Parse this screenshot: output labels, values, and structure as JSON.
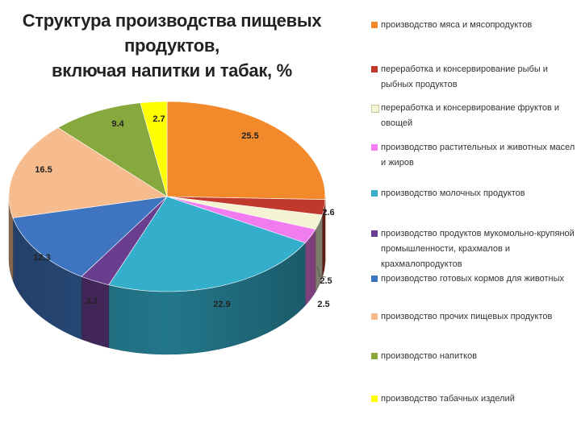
{
  "chart_data": {
    "type": "pie",
    "title_lines": [
      "Структура производства пищевых продуктов,",
      "включая напитки и табак, %"
    ],
    "slices": [
      {
        "label": "производство мяса и мясопродуктов",
        "value": 25.5,
        "color": "#F28A2C"
      },
      {
        "label": "переработка и консервирование рыбы и рыбных продуктов",
        "value": 2.6,
        "color": "#C0392B"
      },
      {
        "label": "переработка и консервирование фруктов и овощей",
        "value": 2.5,
        "color": "#F4F3D2"
      },
      {
        "label": "производство растительных и животных масел и жиров",
        "value": 2.5,
        "color": "#F07CF0"
      },
      {
        "label": "производство молочных продуктов",
        "value": 22.9,
        "color": "#33AECB"
      },
      {
        "label": "производство продуктов мукомольно-крупяной промышленности, крахмалов и крахмалопродуктов",
        "value": 3.1,
        "color": "#6A3E8E"
      },
      {
        "label": "производство готовых кормов для животных",
        "value": 12.3,
        "color": "#3F74C0"
      },
      {
        "label": "производство прочих пищевых продуктов",
        "value": 16.5,
        "color": "#F6BC8E"
      },
      {
        "label": "производство напитков",
        "value": 9.4,
        "color": "#86A83D"
      },
      {
        "label": "производство табачных изделий",
        "value": 2.7,
        "color": "#FFFF00"
      }
    ],
    "data_labels": [
      "25.5",
      "2.6",
      "2.5",
      "2.5",
      "22.9",
      "3.1",
      "12.3",
      "16.5",
      "9.4",
      "2.7"
    ],
    "legend_position": "right"
  }
}
